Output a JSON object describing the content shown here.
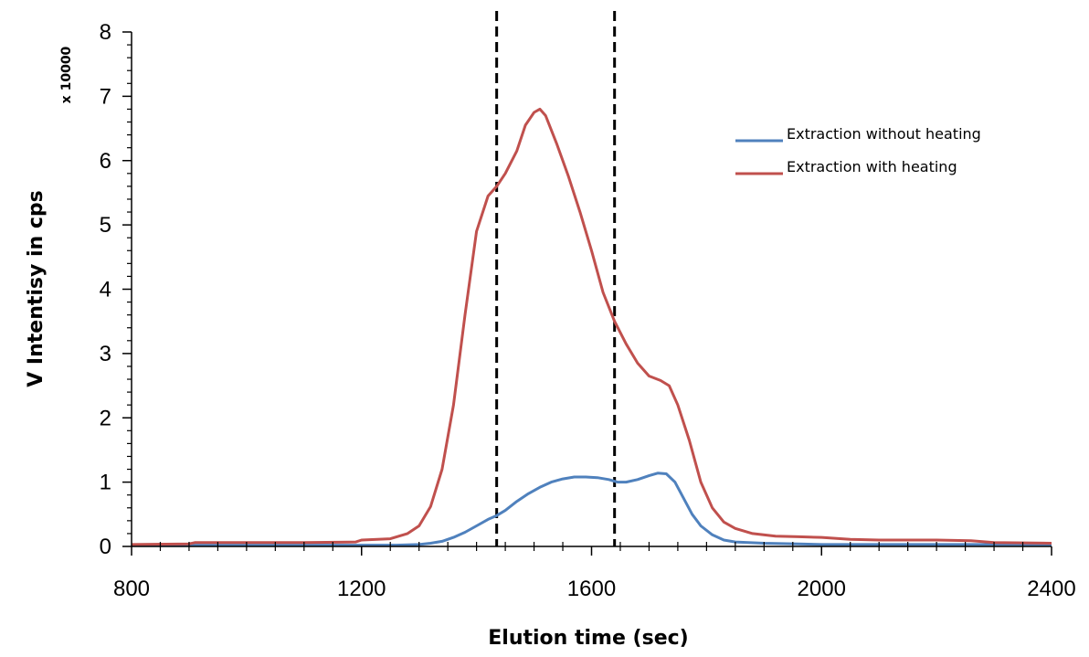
{
  "chart_data": {
    "type": "line",
    "xlabel": "Elution time (sec)",
    "ylabel": "V Intentisy in cps",
    "y_unit_label": "x 10000",
    "xlim": [
      800,
      2400
    ],
    "ylim": [
      0,
      8
    ],
    "x_ticks": [
      800,
      1200,
      1600,
      2000,
      2400
    ],
    "y_ticks": [
      0,
      1,
      2,
      3,
      4,
      5,
      6,
      7,
      8
    ],
    "grid": false,
    "legend_position": "top-right",
    "vertical_markers": {
      "style": "dashed",
      "color": "#000000",
      "x": [
        1435,
        1640
      ]
    },
    "series": [
      {
        "name": "Extraction without heating",
        "color": "#4F81BD",
        "points": [
          [
            800,
            0.02
          ],
          [
            900,
            0.02
          ],
          [
            1000,
            0.02
          ],
          [
            1100,
            0.02
          ],
          [
            1200,
            0.02
          ],
          [
            1260,
            0.02
          ],
          [
            1300,
            0.03
          ],
          [
            1320,
            0.05
          ],
          [
            1340,
            0.08
          ],
          [
            1360,
            0.14
          ],
          [
            1380,
            0.22
          ],
          [
            1400,
            0.32
          ],
          [
            1420,
            0.42
          ],
          [
            1435,
            0.48
          ],
          [
            1450,
            0.56
          ],
          [
            1470,
            0.7
          ],
          [
            1490,
            0.82
          ],
          [
            1510,
            0.92
          ],
          [
            1530,
            1.0
          ],
          [
            1550,
            1.05
          ],
          [
            1570,
            1.08
          ],
          [
            1590,
            1.08
          ],
          [
            1610,
            1.07
          ],
          [
            1630,
            1.04
          ],
          [
            1645,
            1.0
          ],
          [
            1660,
            1.0
          ],
          [
            1680,
            1.04
          ],
          [
            1700,
            1.1
          ],
          [
            1715,
            1.14
          ],
          [
            1730,
            1.13
          ],
          [
            1745,
            1.0
          ],
          [
            1760,
            0.75
          ],
          [
            1775,
            0.5
          ],
          [
            1790,
            0.32
          ],
          [
            1810,
            0.18
          ],
          [
            1830,
            0.1
          ],
          [
            1850,
            0.07
          ],
          [
            1900,
            0.05
          ],
          [
            1960,
            0.04
          ],
          [
            2000,
            0.03
          ],
          [
            2100,
            0.03
          ],
          [
            2200,
            0.03
          ],
          [
            2300,
            0.03
          ],
          [
            2400,
            0.03
          ]
        ]
      },
      {
        "name": "Extraction with heating",
        "color": "#C0504D",
        "points": [
          [
            800,
            0.03
          ],
          [
            900,
            0.04
          ],
          [
            910,
            0.06
          ],
          [
            1000,
            0.06
          ],
          [
            1100,
            0.06
          ],
          [
            1190,
            0.07
          ],
          [
            1200,
            0.1
          ],
          [
            1250,
            0.12
          ],
          [
            1280,
            0.2
          ],
          [
            1300,
            0.32
          ],
          [
            1320,
            0.62
          ],
          [
            1340,
            1.2
          ],
          [
            1360,
            2.2
          ],
          [
            1380,
            3.6
          ],
          [
            1400,
            4.9
          ],
          [
            1420,
            5.45
          ],
          [
            1435,
            5.6
          ],
          [
            1450,
            5.8
          ],
          [
            1470,
            6.15
          ],
          [
            1485,
            6.55
          ],
          [
            1500,
            6.75
          ],
          [
            1510,
            6.8
          ],
          [
            1520,
            6.7
          ],
          [
            1540,
            6.25
          ],
          [
            1560,
            5.75
          ],
          [
            1580,
            5.2
          ],
          [
            1600,
            4.6
          ],
          [
            1620,
            3.95
          ],
          [
            1640,
            3.5
          ],
          [
            1660,
            3.15
          ],
          [
            1680,
            2.85
          ],
          [
            1700,
            2.65
          ],
          [
            1720,
            2.58
          ],
          [
            1735,
            2.5
          ],
          [
            1750,
            2.2
          ],
          [
            1770,
            1.65
          ],
          [
            1790,
            1.0
          ],
          [
            1810,
            0.6
          ],
          [
            1830,
            0.38
          ],
          [
            1850,
            0.28
          ],
          [
            1880,
            0.2
          ],
          [
            1920,
            0.16
          ],
          [
            1960,
            0.15
          ],
          [
            2000,
            0.14
          ],
          [
            2050,
            0.11
          ],
          [
            2100,
            0.1
          ],
          [
            2200,
            0.1
          ],
          [
            2260,
            0.09
          ],
          [
            2300,
            0.06
          ],
          [
            2400,
            0.05
          ]
        ]
      }
    ]
  }
}
